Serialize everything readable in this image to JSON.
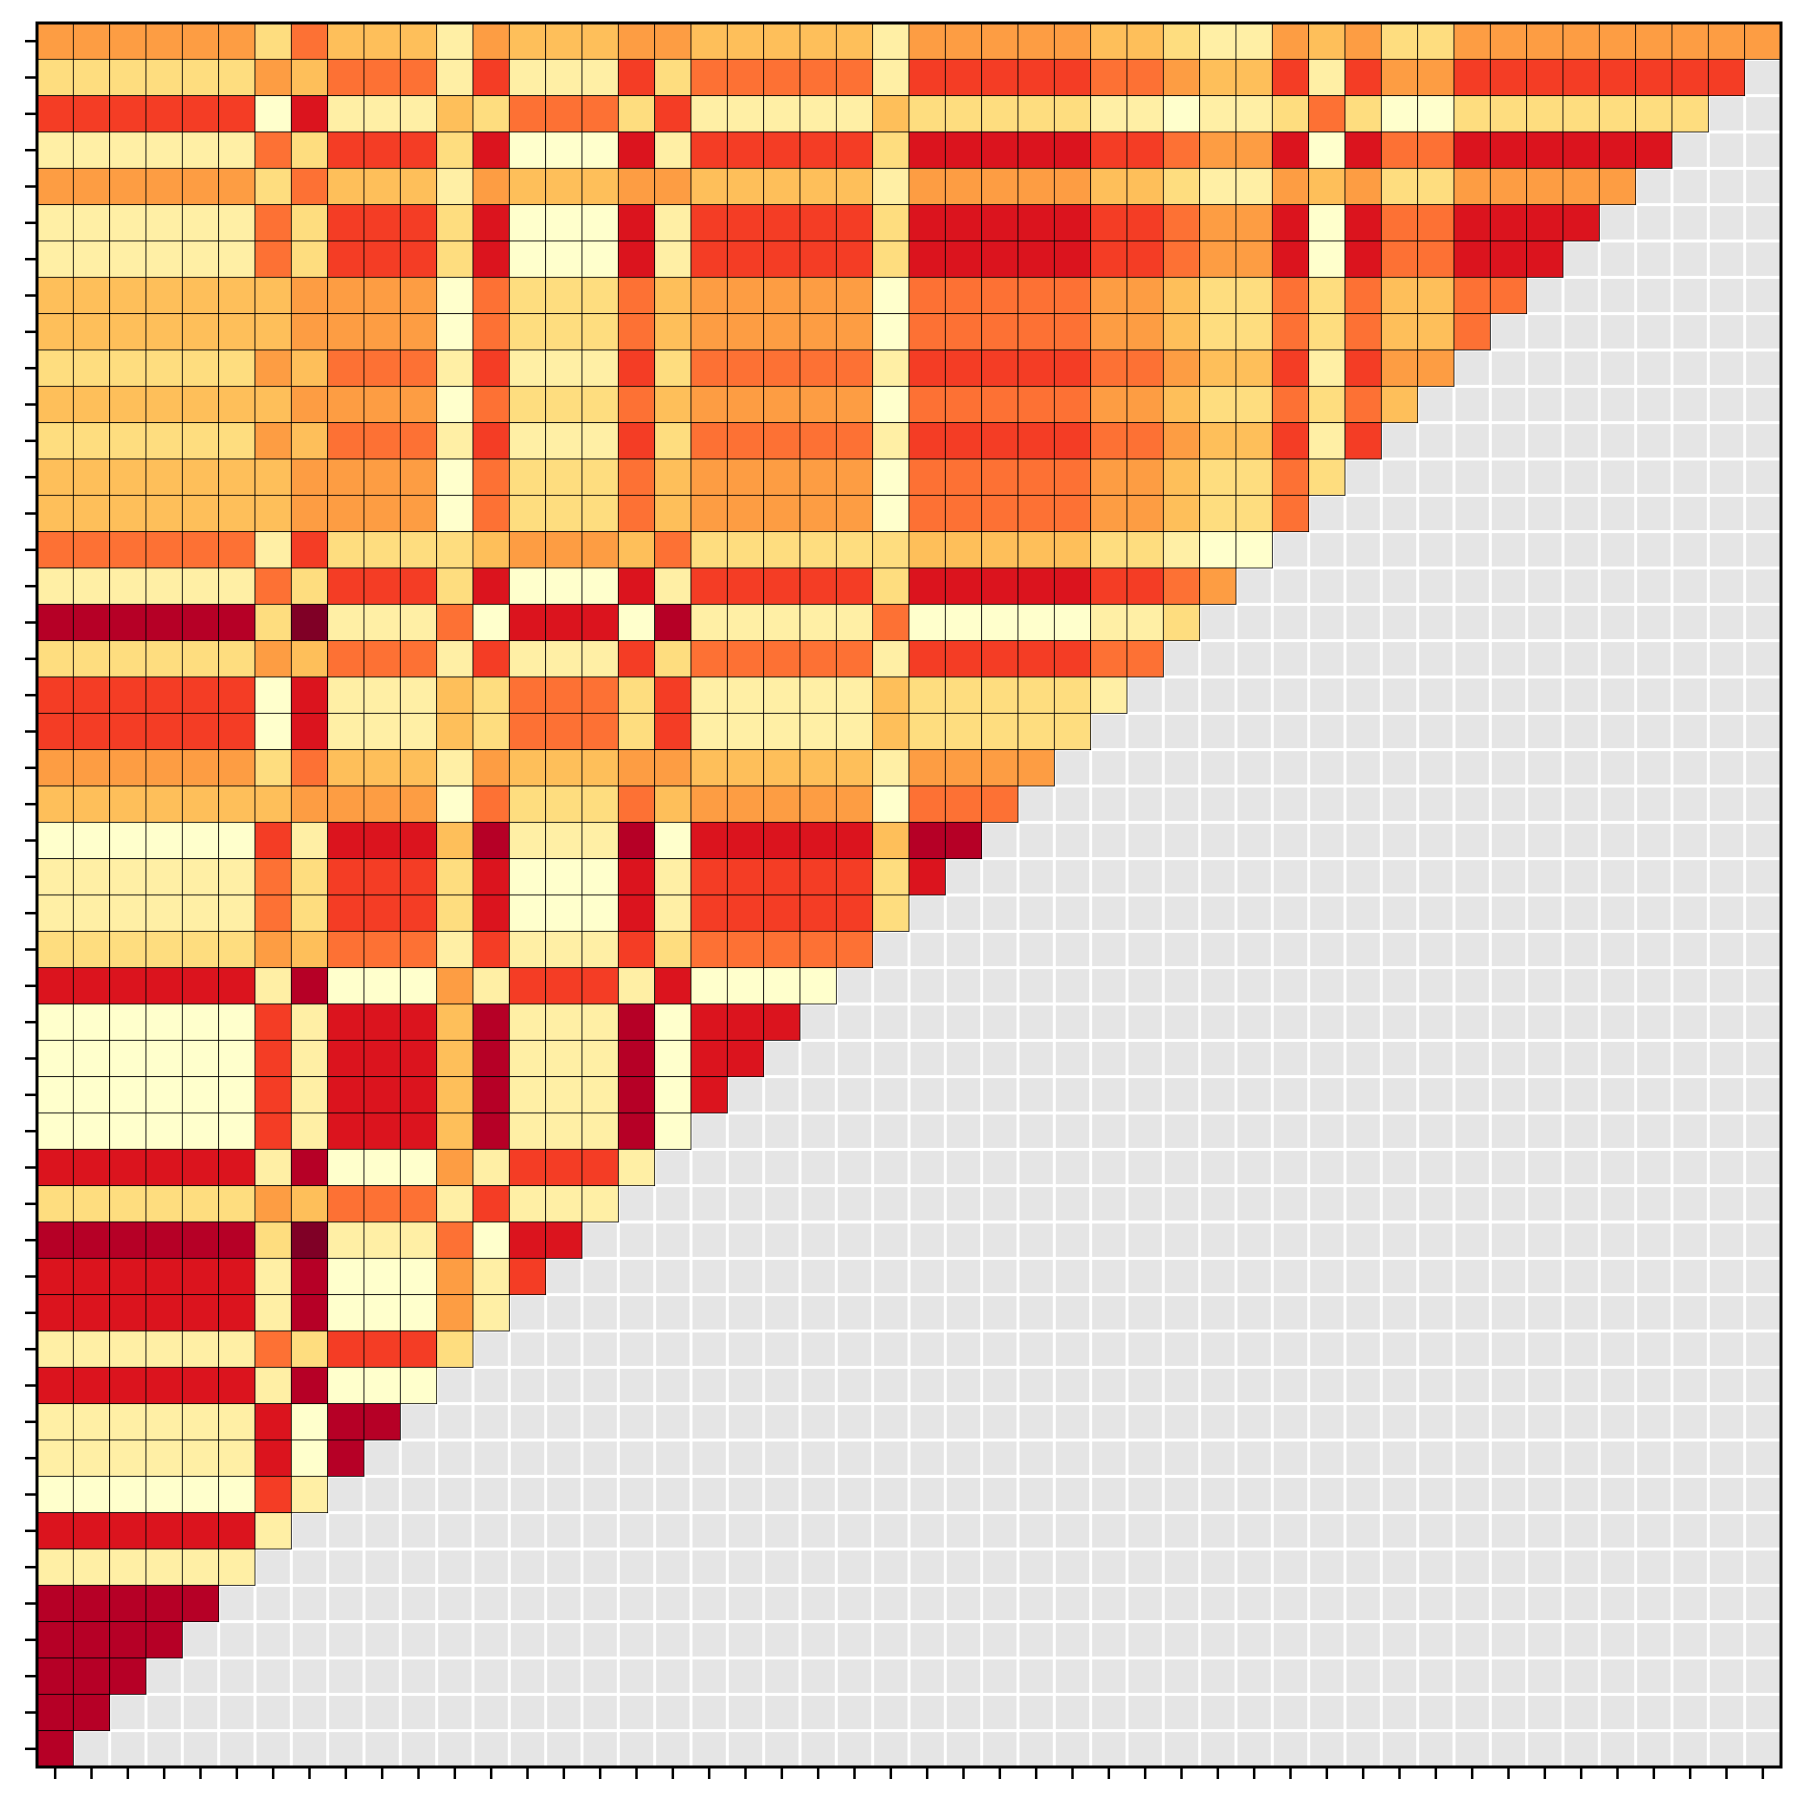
{
  "chart_data": {
    "type": "heatmap",
    "colormap": [
      "#ffffcc",
      "#ffeda0",
      "#fed976",
      "#feb24c",
      "#fd8d3c",
      "#fc4e2a",
      "#e31a1c",
      "#bd0026",
      "#800026"
    ],
    "vlim": [
      0,
      9
    ],
    "mask_color": "#e5e5e5",
    "xlim": [
      -0.5,
      47.5
    ],
    "ylim": [
      47.5,
      -0.5
    ],
    "xticks": [
      0,
      1,
      2,
      3,
      4,
      5,
      6,
      7,
      8,
      9,
      10,
      11,
      12,
      13,
      14,
      15,
      16,
      17,
      18,
      19,
      20,
      21,
      22,
      23,
      24,
      25,
      26,
      27,
      28,
      29,
      30,
      31,
      32,
      33,
      34,
      35,
      36,
      37,
      38,
      39,
      40,
      41,
      42,
      43,
      44,
      45,
      46,
      47
    ],
    "yticks": [
      0,
      1,
      2,
      3,
      4,
      5,
      6,
      7,
      8,
      9,
      10,
      11,
      12,
      13,
      14,
      15,
      16,
      17,
      18,
      19,
      20,
      21,
      22,
      23,
      24,
      25,
      26,
      27,
      28,
      29,
      30,
      31,
      32,
      33,
      34,
      35,
      36,
      37,
      38,
      39,
      40,
      41,
      42,
      43,
      44,
      45,
      46,
      47
    ],
    "values": [
      [
        4,
        4,
        4,
        4,
        4,
        4,
        2,
        5,
        3,
        3,
        3,
        1,
        4,
        3,
        3,
        3,
        4,
        4,
        3,
        3,
        3,
        3,
        3,
        1,
        4,
        4,
        4,
        4,
        4,
        3,
        3,
        2,
        1,
        1,
        4,
        3,
        4,
        2,
        2,
        4,
        4,
        4,
        4,
        4,
        4,
        4,
        4,
        4
      ],
      [
        2,
        2,
        2,
        2,
        2,
        2,
        4,
        3,
        5,
        5,
        5,
        1,
        6,
        1,
        1,
        1,
        6,
        2,
        5,
        5,
        5,
        5,
        5,
        1,
        6,
        6,
        6,
        6,
        6,
        5,
        5,
        4,
        3,
        3,
        6,
        1,
        6,
        4,
        4,
        6,
        6,
        6,
        6,
        6,
        6,
        6,
        6
      ],
      [
        6,
        6,
        6,
        6,
        6,
        6,
        0,
        7,
        1,
        1,
        1,
        3,
        2,
        5,
        5,
        5,
        2,
        6,
        1,
        1,
        1,
        1,
        1,
        3,
        2,
        2,
        2,
        2,
        2,
        1,
        1,
        0,
        1,
        1,
        2,
        5,
        2,
        0,
        0,
        2,
        2,
        2,
        2,
        2,
        2,
        2
      ],
      [
        1,
        1,
        1,
        1,
        1,
        1,
        5,
        2,
        6,
        6,
        6,
        2,
        7,
        0,
        0,
        0,
        7,
        1,
        6,
        6,
        6,
        6,
        6,
        2,
        7,
        7,
        7,
        7,
        7,
        6,
        6,
        5,
        4,
        4,
        7,
        0,
        7,
        5,
        5,
        7,
        7,
        7,
        7,
        7,
        7
      ],
      [
        4,
        4,
        4,
        4,
        4,
        4,
        2,
        5,
        3,
        3,
        3,
        1,
        4,
        3,
        3,
        3,
        4,
        4,
        3,
        3,
        3,
        3,
        3,
        1,
        4,
        4,
        4,
        4,
        4,
        3,
        3,
        2,
        1,
        1,
        4,
        3,
        4,
        2,
        2,
        4,
        4,
        4,
        4,
        4
      ],
      [
        1,
        1,
        1,
        1,
        1,
        1,
        5,
        2,
        6,
        6,
        6,
        2,
        7,
        0,
        0,
        0,
        7,
        1,
        6,
        6,
        6,
        6,
        6,
        2,
        7,
        7,
        7,
        7,
        7,
        6,
        6,
        5,
        4,
        4,
        7,
        0,
        7,
        5,
        5,
        7,
        7,
        7,
        7
      ],
      [
        1,
        1,
        1,
        1,
        1,
        1,
        5,
        2,
        6,
        6,
        6,
        2,
        7,
        0,
        0,
        0,
        7,
        1,
        6,
        6,
        6,
        6,
        6,
        2,
        7,
        7,
        7,
        7,
        7,
        6,
        6,
        5,
        4,
        4,
        7,
        0,
        7,
        5,
        5,
        7,
        7,
        7
      ],
      [
        3,
        3,
        3,
        3,
        3,
        3,
        3,
        4,
        4,
        4,
        4,
        0,
        5,
        2,
        2,
        2,
        5,
        3,
        4,
        4,
        4,
        4,
        4,
        0,
        5,
        5,
        5,
        5,
        5,
        4,
        4,
        3,
        2,
        2,
        5,
        2,
        5,
        3,
        3,
        5,
        5
      ],
      [
        3,
        3,
        3,
        3,
        3,
        3,
        3,
        4,
        4,
        4,
        4,
        0,
        5,
        2,
        2,
        2,
        5,
        3,
        4,
        4,
        4,
        4,
        4,
        0,
        5,
        5,
        5,
        5,
        5,
        4,
        4,
        3,
        2,
        2,
        5,
        2,
        5,
        3,
        3,
        5
      ],
      [
        2,
        2,
        2,
        2,
        2,
        2,
        4,
        3,
        5,
        5,
        5,
        1,
        6,
        1,
        1,
        1,
        6,
        2,
        5,
        5,
        5,
        5,
        5,
        1,
        6,
        6,
        6,
        6,
        6,
        5,
        5,
        4,
        3,
        3,
        6,
        1,
        6,
        4,
        4
      ],
      [
        3,
        3,
        3,
        3,
        3,
        3,
        3,
        4,
        4,
        4,
        4,
        0,
        5,
        2,
        2,
        2,
        5,
        3,
        4,
        4,
        4,
        4,
        4,
        0,
        5,
        5,
        5,
        5,
        5,
        4,
        4,
        3,
        2,
        2,
        5,
        2,
        5,
        3
      ],
      [
        2,
        2,
        2,
        2,
        2,
        2,
        4,
        3,
        5,
        5,
        5,
        1,
        6,
        1,
        1,
        1,
        6,
        2,
        5,
        5,
        5,
        5,
        5,
        1,
        6,
        6,
        6,
        6,
        6,
        5,
        5,
        4,
        3,
        3,
        6,
        1,
        6
      ],
      [
        3,
        3,
        3,
        3,
        3,
        3,
        3,
        4,
        4,
        4,
        4,
        0,
        5,
        2,
        2,
        2,
        5,
        3,
        4,
        4,
        4,
        4,
        4,
        0,
        5,
        5,
        5,
        5,
        5,
        4,
        4,
        3,
        2,
        2,
        5,
        2
      ],
      [
        3,
        3,
        3,
        3,
        3,
        3,
        3,
        4,
        4,
        4,
        4,
        0,
        5,
        2,
        2,
        2,
        5,
        3,
        4,
        4,
        4,
        4,
        4,
        0,
        5,
        5,
        5,
        5,
        5,
        4,
        4,
        3,
        2,
        2,
        5
      ],
      [
        5,
        5,
        5,
        5,
        5,
        5,
        1,
        6,
        2,
        2,
        2,
        2,
        3,
        4,
        4,
        4,
        3,
        5,
        2,
        2,
        2,
        2,
        2,
        2,
        3,
        3,
        3,
        3,
        3,
        2,
        2,
        1,
        0,
        0
      ],
      [
        1,
        1,
        1,
        1,
        1,
        1,
        5,
        2,
        6,
        6,
        6,
        2,
        7,
        0,
        0,
        0,
        7,
        1,
        6,
        6,
        6,
        6,
        6,
        2,
        7,
        7,
        7,
        7,
        7,
        6,
        6,
        5,
        4
      ],
      [
        8,
        8,
        8,
        8,
        8,
        8,
        2,
        9,
        1,
        1,
        1,
        5,
        0,
        7,
        7,
        7,
        0,
        8,
        1,
        1,
        1,
        1,
        1,
        5,
        0,
        0,
        0,
        0,
        0,
        1,
        1,
        2
      ],
      [
        2,
        2,
        2,
        2,
        2,
        2,
        4,
        3,
        5,
        5,
        5,
        1,
        6,
        1,
        1,
        1,
        6,
        2,
        5,
        5,
        5,
        5,
        5,
        1,
        6,
        6,
        6,
        6,
        6,
        5,
        5
      ],
      [
        6,
        6,
        6,
        6,
        6,
        6,
        0,
        7,
        1,
        1,
        1,
        3,
        2,
        5,
        5,
        5,
        2,
        6,
        1,
        1,
        1,
        1,
        1,
        3,
        2,
        2,
        2,
        2,
        2,
        1
      ],
      [
        6,
        6,
        6,
        6,
        6,
        6,
        0,
        7,
        1,
        1,
        1,
        3,
        2,
        5,
        5,
        5,
        2,
        6,
        1,
        1,
        1,
        1,
        1,
        3,
        2,
        2,
        2,
        2,
        2
      ],
      [
        4,
        4,
        4,
        4,
        4,
        4,
        2,
        5,
        3,
        3,
        3,
        1,
        4,
        3,
        3,
        3,
        4,
        4,
        3,
        3,
        3,
        3,
        3,
        1,
        4,
        4,
        4,
        4
      ],
      [
        3,
        3,
        3,
        3,
        3,
        3,
        3,
        4,
        4,
        4,
        4,
        0,
        5,
        2,
        2,
        2,
        5,
        3,
        4,
        4,
        4,
        4,
        4,
        0,
        5,
        5,
        5
      ],
      [
        0,
        0,
        0,
        0,
        0,
        0,
        6,
        1,
        7,
        7,
        7,
        3,
        8,
        1,
        1,
        1,
        8,
        0,
        7,
        7,
        7,
        7,
        7,
        3,
        8,
        8
      ],
      [
        1,
        1,
        1,
        1,
        1,
        1,
        5,
        2,
        6,
        6,
        6,
        2,
        7,
        0,
        0,
        0,
        7,
        1,
        6,
        6,
        6,
        6,
        6,
        2,
        7
      ],
      [
        1,
        1,
        1,
        1,
        1,
        1,
        5,
        2,
        6,
        6,
        6,
        2,
        7,
        0,
        0,
        0,
        7,
        1,
        6,
        6,
        6,
        6,
        6,
        2
      ],
      [
        2,
        2,
        2,
        2,
        2,
        2,
        4,
        3,
        5,
        5,
        5,
        1,
        6,
        1,
        1,
        1,
        6,
        2,
        5,
        5,
        5,
        5,
        5
      ],
      [
        7,
        7,
        7,
        7,
        7,
        7,
        1,
        8,
        0,
        0,
        0,
        4,
        1,
        6,
        6,
        6,
        1,
        7,
        0,
        0,
        0,
        0
      ],
      [
        0,
        0,
        0,
        0,
        0,
        0,
        6,
        1,
        7,
        7,
        7,
        3,
        8,
        1,
        1,
        1,
        8,
        0,
        7,
        7,
        7
      ],
      [
        0,
        0,
        0,
        0,
        0,
        0,
        6,
        1,
        7,
        7,
        7,
        3,
        8,
        1,
        1,
        1,
        8,
        0,
        7,
        7
      ],
      [
        0,
        0,
        0,
        0,
        0,
        0,
        6,
        1,
        7,
        7,
        7,
        3,
        8,
        1,
        1,
        1,
        8,
        0,
        7
      ],
      [
        0,
        0,
        0,
        0,
        0,
        0,
        6,
        1,
        7,
        7,
        7,
        3,
        8,
        1,
        1,
        1,
        8,
        0
      ],
      [
        7,
        7,
        7,
        7,
        7,
        7,
        1,
        8,
        0,
        0,
        0,
        4,
        1,
        6,
        6,
        6,
        1
      ],
      [
        2,
        2,
        2,
        2,
        2,
        2,
        4,
        3,
        5,
        5,
        5,
        1,
        6,
        1,
        1,
        1
      ],
      [
        8,
        8,
        8,
        8,
        8,
        8,
        2,
        9,
        1,
        1,
        1,
        5,
        0,
        7,
        7
      ],
      [
        7,
        7,
        7,
        7,
        7,
        7,
        1,
        8,
        0,
        0,
        0,
        4,
        1,
        6
      ],
      [
        7,
        7,
        7,
        7,
        7,
        7,
        1,
        8,
        0,
        0,
        0,
        4,
        1
      ],
      [
        1,
        1,
        1,
        1,
        1,
        1,
        5,
        2,
        6,
        6,
        6,
        2
      ],
      [
        7,
        7,
        7,
        7,
        7,
        7,
        1,
        8,
        0,
        0,
        0
      ],
      [
        1,
        1,
        1,
        1,
        1,
        1,
        7,
        0,
        8,
        8
      ],
      [
        1,
        1,
        1,
        1,
        1,
        1,
        7,
        0,
        8
      ],
      [
        0,
        0,
        0,
        0,
        0,
        0,
        6,
        1
      ],
      [
        7,
        7,
        7,
        7,
        7,
        7,
        1
      ],
      [
        1,
        1,
        1,
        1,
        1,
        1
      ],
      [
        8,
        8,
        8,
        8,
        8
      ],
      [
        8,
        8,
        8,
        8
      ],
      [
        8,
        8,
        8
      ],
      [
        8,
        8
      ],
      [
        8
      ]
    ]
  }
}
